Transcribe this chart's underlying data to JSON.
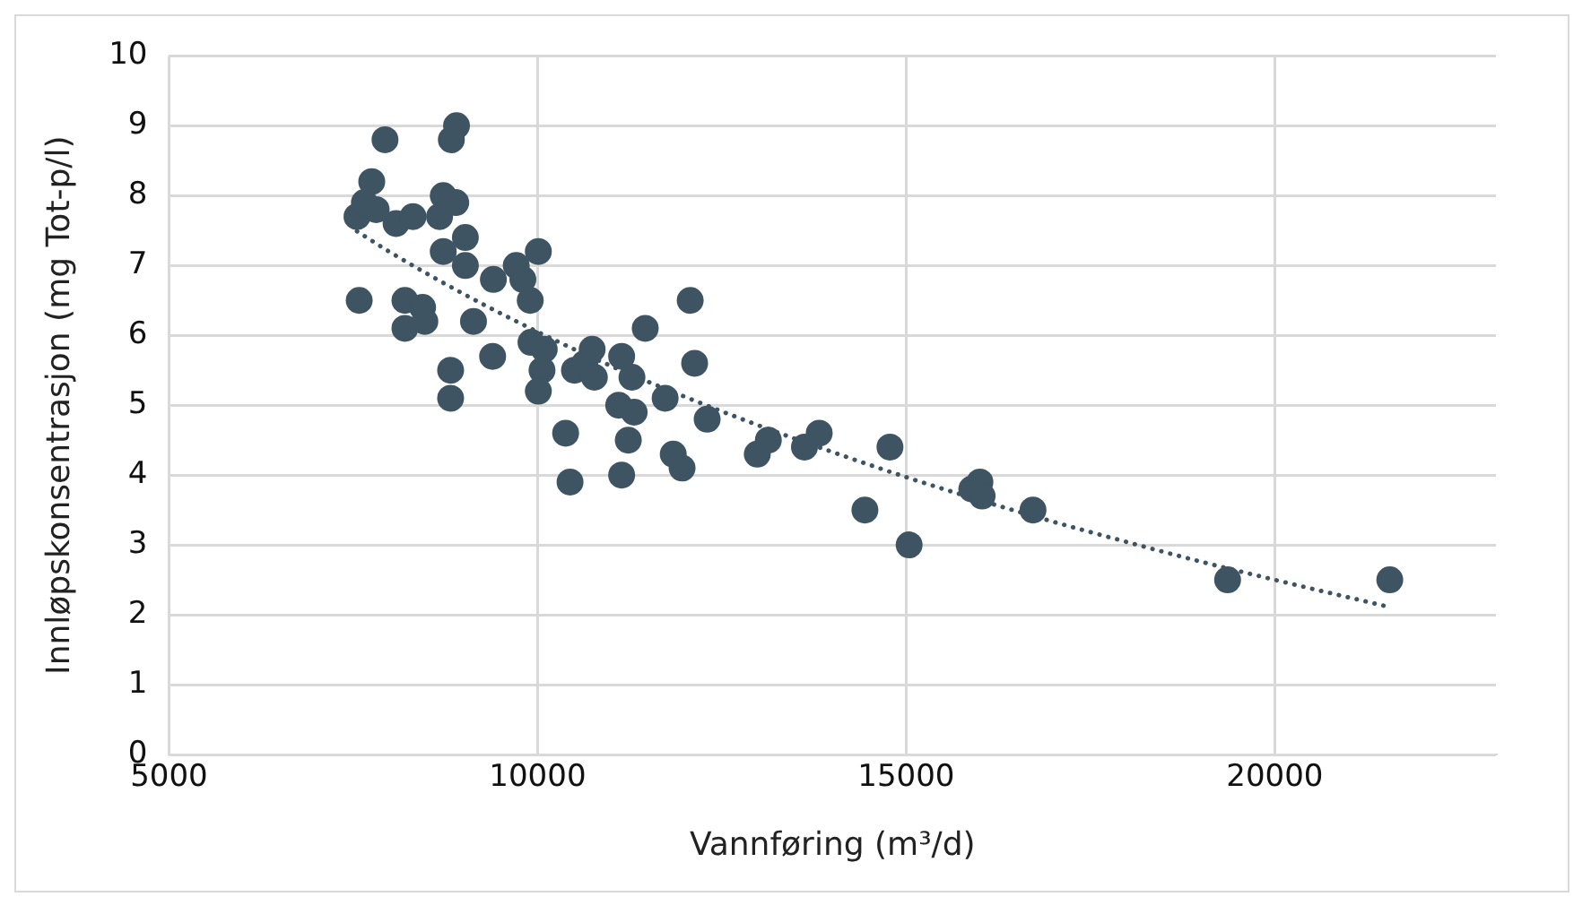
{
  "chart_data": {
    "type": "scatter",
    "xlabel": "Vannføring (m³/d)",
    "ylabel": "Innløpskonsentrasjon (mg Tot-p/l)",
    "xlim": [
      5000,
      23000
    ],
    "xticks": [
      5000,
      10000,
      15000,
      20000
    ],
    "ylim": [
      0,
      10
    ],
    "yticks": [
      0,
      1,
      2,
      3,
      4,
      5,
      6,
      7,
      8,
      9,
      10
    ],
    "grid": true,
    "legend": false,
    "series": [
      {
        "color": "#3e5463",
        "marker": "circle",
        "x": [
          7550,
          7650,
          7580,
          7750,
          7810,
          7930,
          8080,
          8310,
          8200,
          8200,
          8440,
          8470,
          8670,
          8720,
          8720,
          8830,
          8900,
          8890,
          8820,
          8820,
          9020,
          9020,
          9130,
          9400,
          9390,
          9710,
          9800,
          9900,
          10010,
          9910,
          10090,
          10060,
          10010,
          10380,
          10440,
          10500,
          10640,
          10740,
          10770,
          11140,
          11100,
          11280,
          11310,
          11230,
          11140,
          11460,
          11730,
          11840,
          11960,
          12070,
          12130,
          12300,
          12980,
          13130,
          13620,
          13820,
          14440,
          14780,
          15040,
          15890,
          16000,
          16030,
          16720,
          19360,
          21560
        ],
        "values": [
          7.7,
          7.9,
          6.5,
          8.2,
          7.8,
          8.8,
          7.6,
          7.7,
          6.5,
          6.1,
          6.4,
          6.2,
          7.7,
          8.0,
          7.2,
          8.8,
          9.0,
          7.9,
          5.5,
          5.1,
          7.4,
          7.0,
          6.2,
          6.8,
          5.7,
          7.0,
          6.8,
          6.5,
          7.2,
          5.9,
          5.8,
          5.5,
          5.2,
          4.6,
          3.9,
          5.5,
          5.6,
          5.8,
          5.4,
          5.7,
          5.0,
          5.4,
          4.9,
          4.5,
          4.0,
          6.1,
          5.1,
          4.3,
          4.1,
          6.5,
          5.6,
          4.8,
          4.3,
          4.5,
          4.4,
          4.6,
          3.5,
          4.4,
          3.0,
          3.8,
          3.9,
          3.7,
          3.5,
          2.5,
          2.5
        ]
      },
      {
        "type": "line",
        "color": "#3e5463",
        "line_style": "dotted",
        "marker": "none",
        "x": [
          7550,
          8000,
          9000,
          10000,
          11000,
          12000,
          13000,
          14000,
          15000,
          16000,
          17000,
          18000,
          19000,
          20000,
          21560
        ],
        "values": [
          7.49,
          7.19,
          6.59,
          6.05,
          5.56,
          5.12,
          4.71,
          4.33,
          3.97,
          3.64,
          3.33,
          3.04,
          2.76,
          2.5,
          2.11
        ]
      }
    ]
  }
}
